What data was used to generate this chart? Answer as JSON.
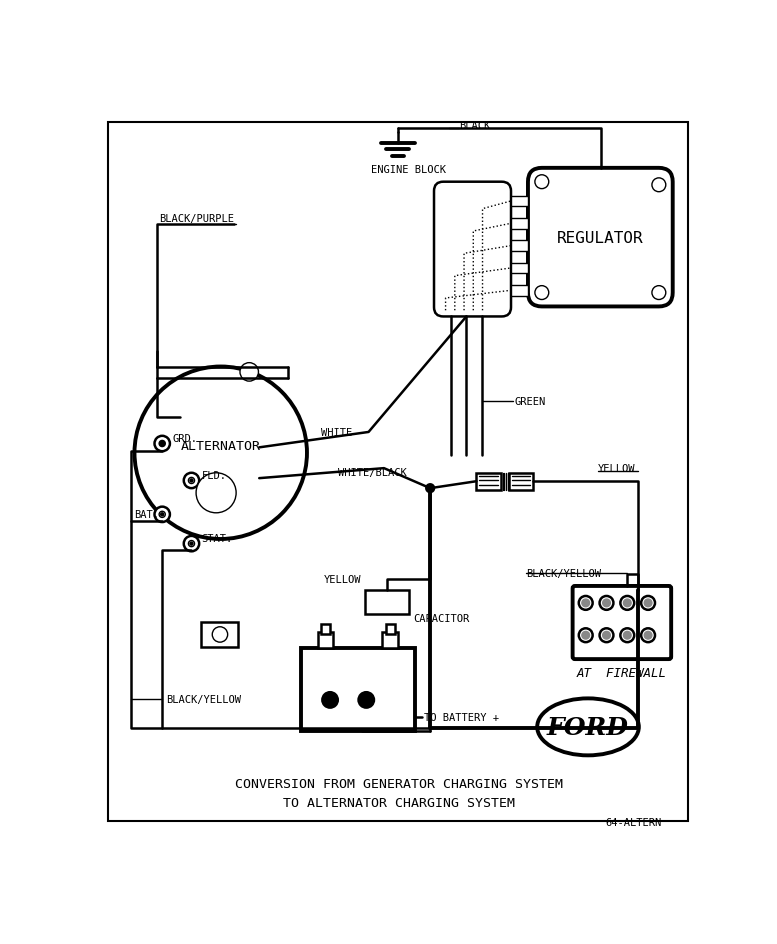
{
  "bg_color": "#ffffff",
  "lc": "#000000",
  "title_line1": "CONVERSION FROM GENERATOR CHARGING SYSTEM",
  "title_line2": "TO ALTERNATOR CHARGING SYSTEM",
  "part_number": "64-ALTERN",
  "labels": {
    "black_purple": "BLACK/PURPLE",
    "grd": "GRD.",
    "fld": "FLD.",
    "bat": "BAT.",
    "stat": "STAT.",
    "alternator": "ALTERNATOR",
    "white": "WHITE",
    "white_black": "WHITE/BLACK",
    "green": "GREEN",
    "engine_block": "ENGINE BLOCK",
    "black_top": "BLACK",
    "yellow_cap": "YELLOW",
    "capacitor": "CAPACITOR",
    "black_yellow_bl": "BLACK/YELLOW",
    "to_battery": "TO BATTERY +",
    "regulator": "REGULATOR",
    "black_yellow_r": "BLACK/YELLOW",
    "at_firewall": "AT  FIREWALL",
    "yellow_top": "YELLOW",
    "ford": "FORD"
  }
}
